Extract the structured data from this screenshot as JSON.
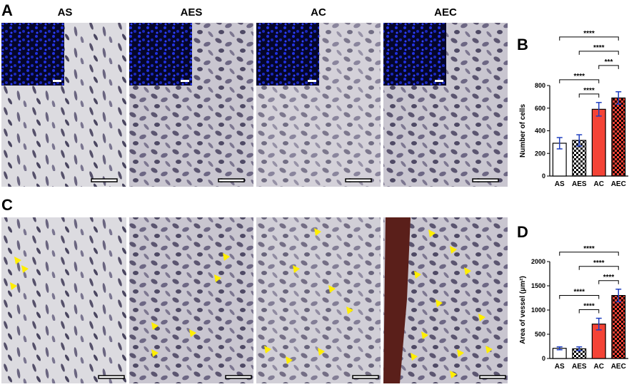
{
  "figure": {
    "panel_labels": [
      "A",
      "B",
      "C",
      "D"
    ],
    "column_labels": [
      "AS",
      "AES",
      "AC",
      "AEC"
    ]
  },
  "chart_data": [
    {
      "type": "bar",
      "ylabel": "Number of cells",
      "categories": [
        "AS",
        "AES",
        "AC",
        "AEC"
      ],
      "values": [
        290,
        315,
        590,
        690
      ],
      "errors": [
        50,
        50,
        60,
        55
      ],
      "colors": [
        "#ffffff",
        "#000000",
        "#f44336",
        "#f44336"
      ],
      "hatch": [
        false,
        true,
        false,
        true
      ],
      "error_color": "#1f3fbf",
      "ylim": [
        0,
        800
      ],
      "yticks": [
        0,
        200,
        400,
        600,
        800
      ],
      "annotations": [
        {
          "text": "****",
          "between": [
            "AES",
            "AC"
          ]
        },
        {
          "text": "****",
          "between": [
            "AS",
            "AC"
          ]
        },
        {
          "text": "***",
          "between": [
            "AC",
            "AEC"
          ]
        },
        {
          "text": "****",
          "between": [
            "AES",
            "AEC"
          ]
        },
        {
          "text": "****",
          "between": [
            "AS",
            "AEC"
          ]
        }
      ]
    },
    {
      "type": "bar",
      "ylabel": "Area of vessel (μm²)",
      "categories": [
        "AS",
        "AES",
        "AC",
        "AEC"
      ],
      "values": [
        210,
        200,
        710,
        1300
      ],
      "errors": [
        30,
        40,
        120,
        130
      ],
      "colors": [
        "#ffffff",
        "#000000",
        "#f44336",
        "#f44336"
      ],
      "hatch": [
        false,
        true,
        false,
        true
      ],
      "error_color": "#1f3fbf",
      "ylim": [
        0,
        2000
      ],
      "yticks": [
        0,
        500,
        1000,
        1500,
        2000
      ],
      "annotations": [
        {
          "text": "****",
          "between": [
            "AES",
            "AC"
          ]
        },
        {
          "text": "****",
          "between": [
            "AS",
            "AC"
          ]
        },
        {
          "text": "****",
          "between": [
            "AC",
            "AEC"
          ]
        },
        {
          "text": "****",
          "between": [
            "AES",
            "AEC"
          ]
        },
        {
          "text": "****",
          "between": [
            "AS",
            "AEC"
          ]
        }
      ]
    }
  ]
}
